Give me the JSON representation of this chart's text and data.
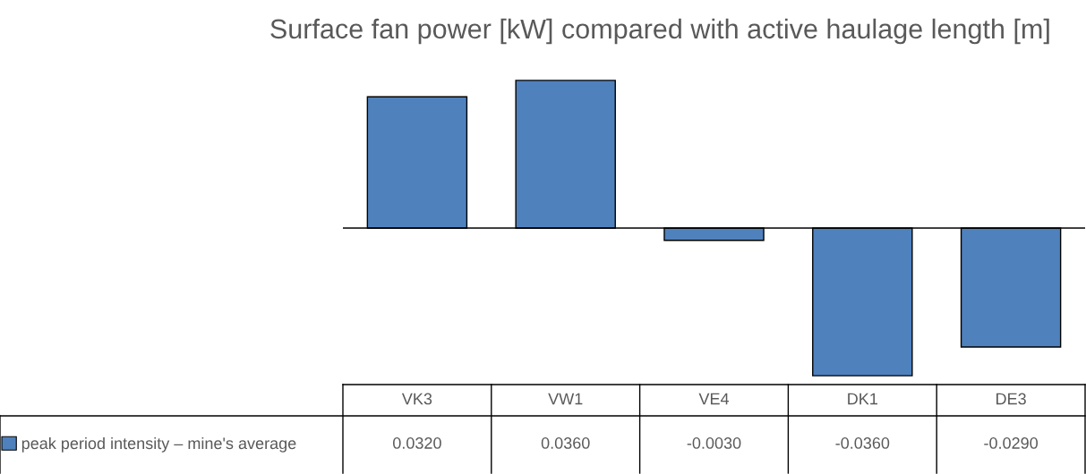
{
  "chart_data": {
    "type": "bar",
    "title": "Surface fan power [kW] compared with active haulage length [m]",
    "categories": [
      "VK3",
      "VW1",
      "VE4",
      "DK1",
      "DE3"
    ],
    "series": [
      {
        "name": "peak period intensity – mine's average",
        "color": "#4f81bd",
        "values": [
          0.032,
          0.036,
          -0.003,
          -0.036,
          -0.029
        ],
        "value_labels": [
          "0.0320",
          "0.0360",
          "-0.0030",
          "-0.0360",
          "-0.0290"
        ]
      }
    ],
    "legend": "bottom"
  }
}
